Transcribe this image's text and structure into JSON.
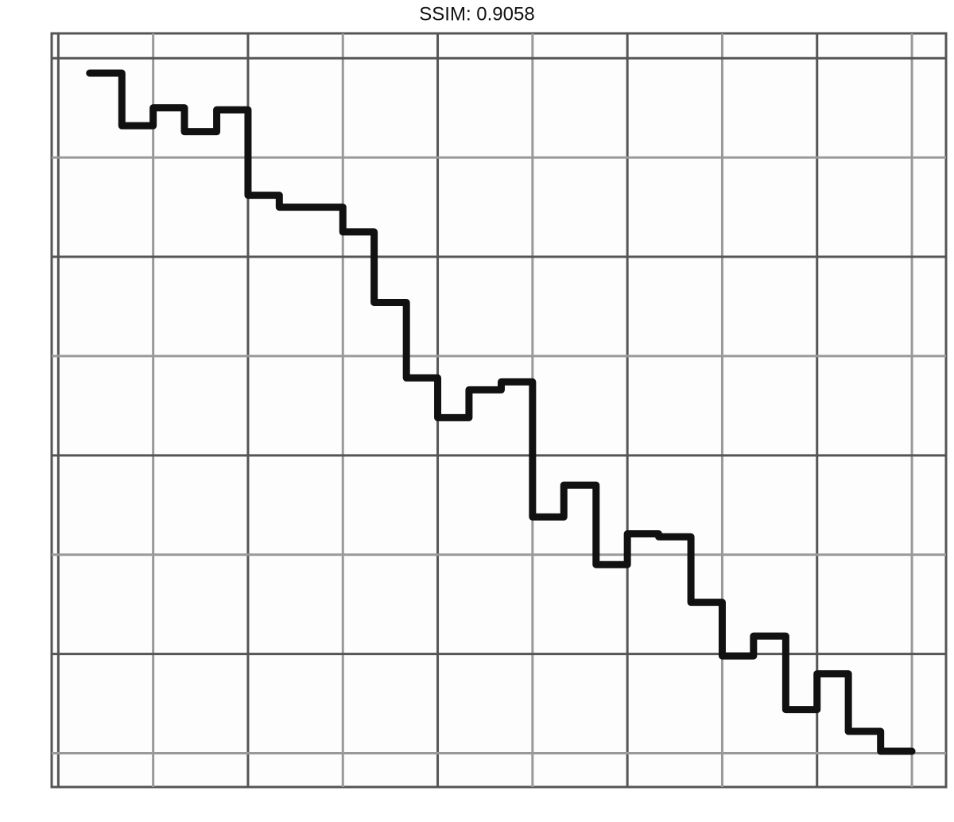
{
  "chart_data": {
    "type": "step",
    "title": "SSIM: 0.9058",
    "x": [
      0.33,
      0.67,
      1,
      1.33,
      1.67,
      2,
      2.33,
      2.67,
      3,
      3.33,
      3.67,
      4,
      4.33,
      4.67,
      5,
      5.33,
      5.67,
      6,
      6.33,
      6.67,
      7,
      7.33,
      7.67,
      8,
      8.33,
      8.67,
      9
    ],
    "series": [
      {
        "color": "#111111",
        "values": [
          6.85,
          6.32,
          6.5,
          6.26,
          6.48,
          5.62,
          5.5,
          5.5,
          5.25,
          4.54,
          3.78,
          3.38,
          3.66,
          3.74,
          2.38,
          2.7,
          1.9,
          2.21,
          2.18,
          1.52,
          0.98,
          1.18,
          0.44,
          0.8,
          0.22,
          0.02,
          0.02
        ]
      }
    ],
    "xlim": [
      -0.07,
      9.36
    ],
    "xticks": [
      0,
      1,
      2,
      3,
      4,
      5,
      6,
      7,
      8,
      9
    ],
    "ylim": [
      -0.34,
      7.25
    ],
    "yticks": [
      0,
      1,
      2,
      3,
      4,
      5,
      6,
      7
    ],
    "grid": true
  }
}
